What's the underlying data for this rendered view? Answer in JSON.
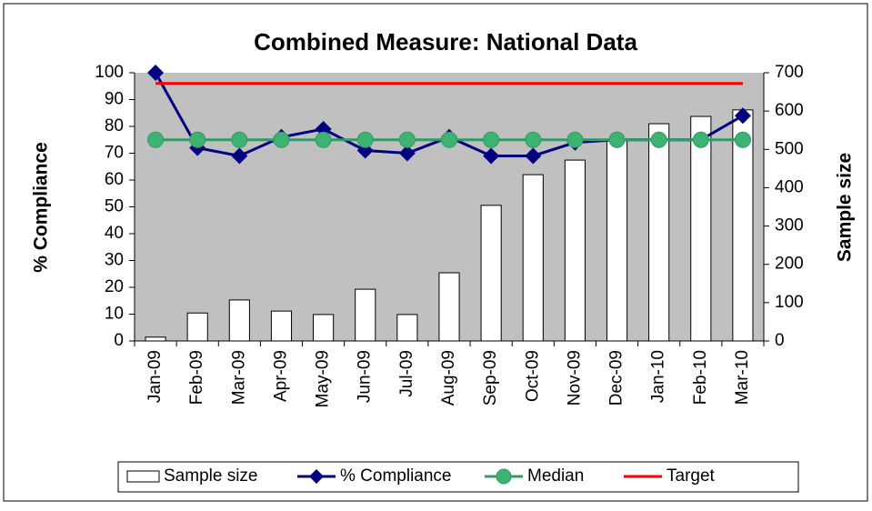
{
  "chart_data": {
    "type": "bar-line",
    "title": "Combined Measure: National Data",
    "y_label": "% Compliance",
    "y2_label": "Sample size",
    "categories": [
      "Jan-09",
      "Feb-09",
      "Mar-09",
      "Apr-09",
      "May-09",
      "Jun-09",
      "Jul-09",
      "Aug-09",
      "Sep-09",
      "Oct-09",
      "Nov-09",
      "Dec-09",
      "Jan-10",
      "Feb-10",
      "Mar-10"
    ],
    "series": [
      {
        "name": "Sample size",
        "type": "bar",
        "axis": "y2",
        "color": "#ffffff",
        "values": [
          10,
          73,
          107,
          78,
          69,
          135,
          69,
          178,
          354,
          434,
          472,
          522,
          567,
          586,
          603
        ]
      },
      {
        "name": "% Compliance",
        "type": "line",
        "marker": "diamond",
        "color": "#000080",
        "values": [
          100,
          72,
          69,
          76,
          79,
          71,
          70,
          76,
          69,
          69,
          74,
          75,
          75,
          75,
          84
        ]
      },
      {
        "name": "Median",
        "type": "line",
        "marker": "circle",
        "color": "#339966",
        "values": [
          75,
          75,
          75,
          75,
          75,
          75,
          75,
          75,
          75,
          75,
          75,
          75,
          75,
          75,
          75
        ]
      },
      {
        "name": "Target",
        "type": "line",
        "marker": "none",
        "color": "#ff0000",
        "values": [
          96,
          96,
          96,
          96,
          96,
          96,
          96,
          96,
          96,
          96,
          96,
          96,
          96,
          96,
          96
        ]
      }
    ],
    "ylim": [
      0,
      100
    ],
    "yticks": [
      0,
      10,
      20,
      30,
      40,
      50,
      60,
      70,
      80,
      90,
      100
    ],
    "y2lim": [
      0,
      700
    ],
    "y2ticks": [
      0,
      100,
      200,
      300,
      400,
      500,
      600,
      700
    ],
    "legend": "bottom"
  }
}
